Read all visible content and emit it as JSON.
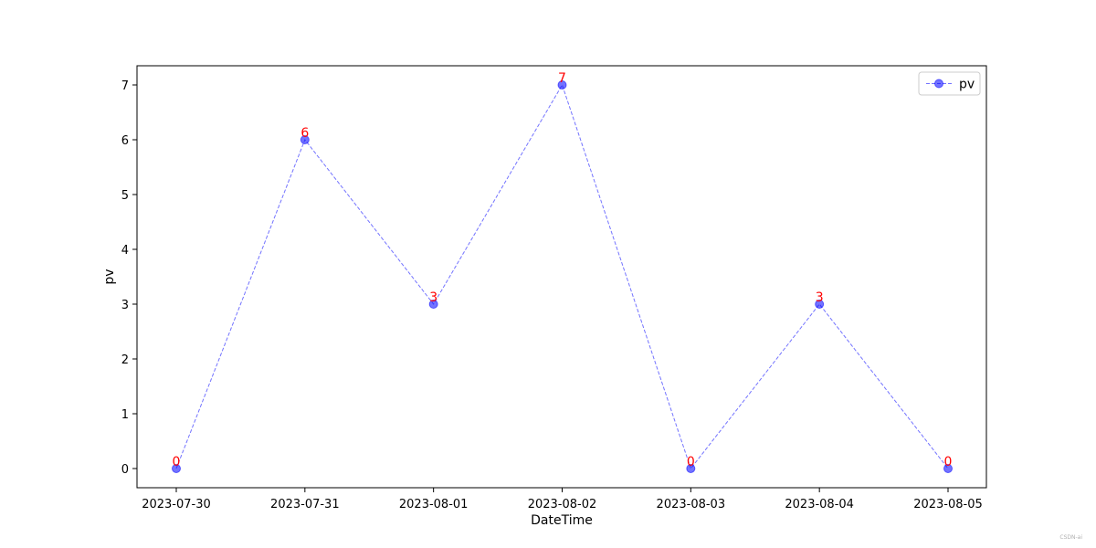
{
  "chart_data": {
    "type": "line",
    "title": "",
    "xlabel": "DateTime",
    "ylabel": "pv",
    "categories": [
      "2023-07-30",
      "2023-07-31",
      "2023-08-01",
      "2023-08-02",
      "2023-08-03",
      "2023-08-04",
      "2023-08-05"
    ],
    "series": [
      {
        "name": "pv",
        "values": [
          0,
          6,
          3,
          7,
          0,
          3,
          0
        ],
        "color": "#0000ff",
        "label_color": "#ff0000",
        "line_style": "dashed",
        "marker": "circle"
      }
    ],
    "ylim": [
      -0.35,
      7.35
    ],
    "yticks": [
      0,
      1,
      2,
      3,
      4,
      5,
      6,
      7
    ],
    "grid": false,
    "legend_position": "top-right"
  },
  "watermark": "CSDN-ai"
}
